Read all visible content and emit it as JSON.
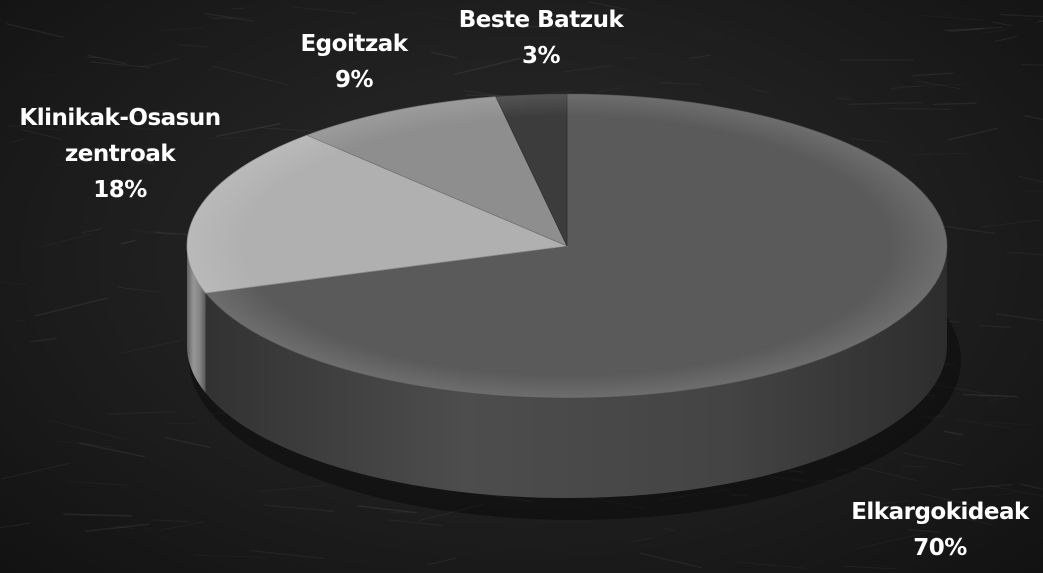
{
  "chart_data": {
    "type": "pie",
    "title": "",
    "slices": [
      {
        "name": "Elkargokideak",
        "label": "Elkargokideak",
        "value": 70,
        "value_label": "70%",
        "color": "#5a5a5a"
      },
      {
        "name": "Klinikak-Osasun zentroak",
        "label_lines": [
          "Klinikak-Osasun",
          "zentroak"
        ],
        "value": 18,
        "value_label": "18%",
        "color": "#b0b0b0"
      },
      {
        "name": "Egoitzak",
        "label": "Egoitzak",
        "value": 9,
        "value_label": "9%",
        "color": "#8e8e8e"
      },
      {
        "name": "Beste Batzuk",
        "label": "Beste Batzuk",
        "value": 3,
        "value_label": "3%",
        "color": "#3c3c3c"
      }
    ],
    "style": "3d",
    "legend": "none",
    "background": "#1d1d1d"
  }
}
